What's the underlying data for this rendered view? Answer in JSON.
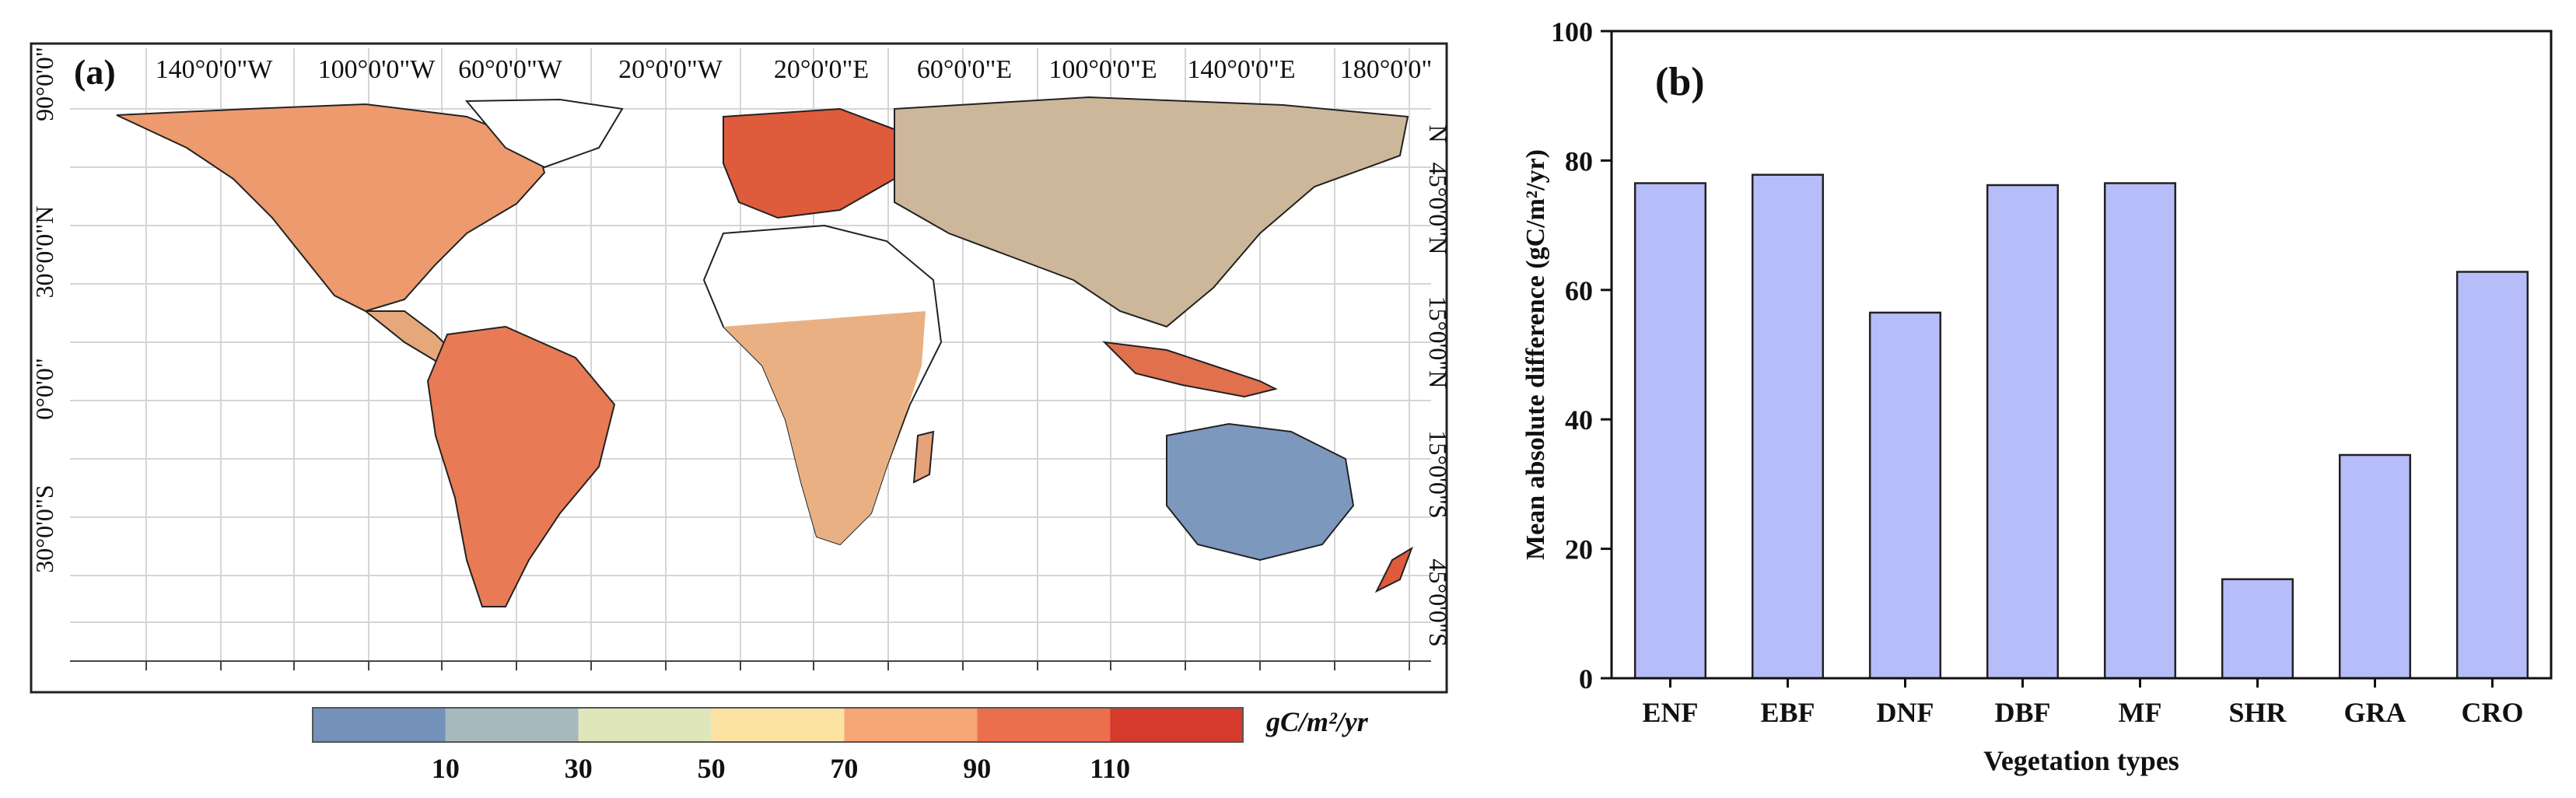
{
  "panel_a": {
    "label": "(a)",
    "top_lon_ticks": [
      "140°0'0\"W",
      "100°0'0\"W",
      "60°0'0\"W",
      "20°0'0\"W",
      "20°0'0\"E",
      "60°0'0\"E",
      "100°0'0\"E",
      "140°0'0\"E",
      "180°0'0\""
    ],
    "left_lat_ticks": [
      "90°0'0\"",
      "30°0'0\"N",
      "0°0'0\"",
      "30°0'0\"S"
    ],
    "right_lat_ticks": [
      "N",
      "45°0'0\"N",
      "15°0'0\"N",
      "15°0'0\"S",
      "45°0'0\"S"
    ],
    "colorbar": {
      "unit": "gC/m²/yr",
      "tick_labels": [
        "10",
        "30",
        "50",
        "70",
        "90",
        "110"
      ],
      "colors": [
        "#7491b9",
        "#a6b9bf",
        "#dfe6b9",
        "#fde3a3",
        "#f7a675",
        "#ec6f4b",
        "#d63a2c"
      ]
    }
  },
  "chart_data": {
    "type": "bar",
    "panel_label": "(b)",
    "title": "",
    "categories": [
      "ENF",
      "EBF",
      "DNF",
      "DBF",
      "MF",
      "SHR",
      "GRA",
      "CRO"
    ],
    "values": [
      76.5,
      77.8,
      56.5,
      76.2,
      76.5,
      15.3,
      34.5,
      62.8
    ],
    "xlabel": "Vegetation types",
    "ylabel": "Mean absolute difference (gC/m²/yr)",
    "ylim": [
      0,
      100
    ],
    "yticks": [
      0,
      20,
      40,
      60,
      80,
      100
    ],
    "bar_color": "#b6bdf8",
    "grid": false
  }
}
